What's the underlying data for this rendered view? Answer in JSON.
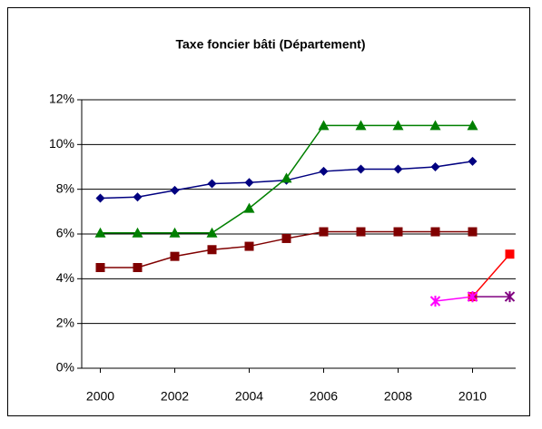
{
  "chart_data": {
    "type": "line",
    "title": "Taxe foncier bâti (Département)",
    "x": [
      2000,
      2001,
      2002,
      2003,
      2004,
      2005,
      2006,
      2007,
      2008,
      2009,
      2010,
      2011
    ],
    "xlim": [
      1999.5,
      2011.5
    ],
    "xticks": [
      2000,
      2002,
      2004,
      2006,
      2008,
      2010
    ],
    "ylim": [
      0,
      12
    ],
    "yticks": [
      {
        "value": 0,
        "label": "0%"
      },
      {
        "value": 2,
        "label": "2%"
      },
      {
        "value": 4,
        "label": "4%"
      },
      {
        "value": 6,
        "label": "6%"
      },
      {
        "value": 8,
        "label": "8%"
      },
      {
        "value": 10,
        "label": "10%"
      },
      {
        "value": 12,
        "label": "12%"
      }
    ],
    "grid": true,
    "series": [
      {
        "color": "#000080",
        "marker": "diamond",
        "values": [
          7.6,
          7.65,
          7.95,
          8.25,
          8.3,
          8.4,
          8.8,
          8.9,
          8.9,
          9.0,
          9.25,
          null
        ]
      },
      {
        "color": "#008000",
        "marker": "triangle",
        "values": [
          6.05,
          6.05,
          6.05,
          6.05,
          7.15,
          8.5,
          10.85,
          10.85,
          10.85,
          10.85,
          10.85,
          null
        ]
      },
      {
        "color": "#800000",
        "marker": "square",
        "values": [
          4.5,
          4.5,
          5.0,
          5.3,
          5.45,
          5.8,
          6.1,
          6.1,
          6.1,
          6.1,
          6.1,
          null
        ]
      },
      {
        "color": "#ff0000",
        "marker": "square",
        "values": [
          null,
          null,
          null,
          null,
          null,
          null,
          null,
          null,
          null,
          null,
          3.2,
          5.1
        ]
      },
      {
        "color": "#800080",
        "marker": "star",
        "values": [
          null,
          null,
          null,
          null,
          null,
          null,
          null,
          null,
          null,
          null,
          3.2,
          3.2
        ]
      },
      {
        "color": "#ff00ff",
        "marker": "star",
        "values": [
          null,
          null,
          null,
          null,
          null,
          null,
          null,
          null,
          null,
          3.0,
          3.2,
          null
        ]
      }
    ]
  }
}
